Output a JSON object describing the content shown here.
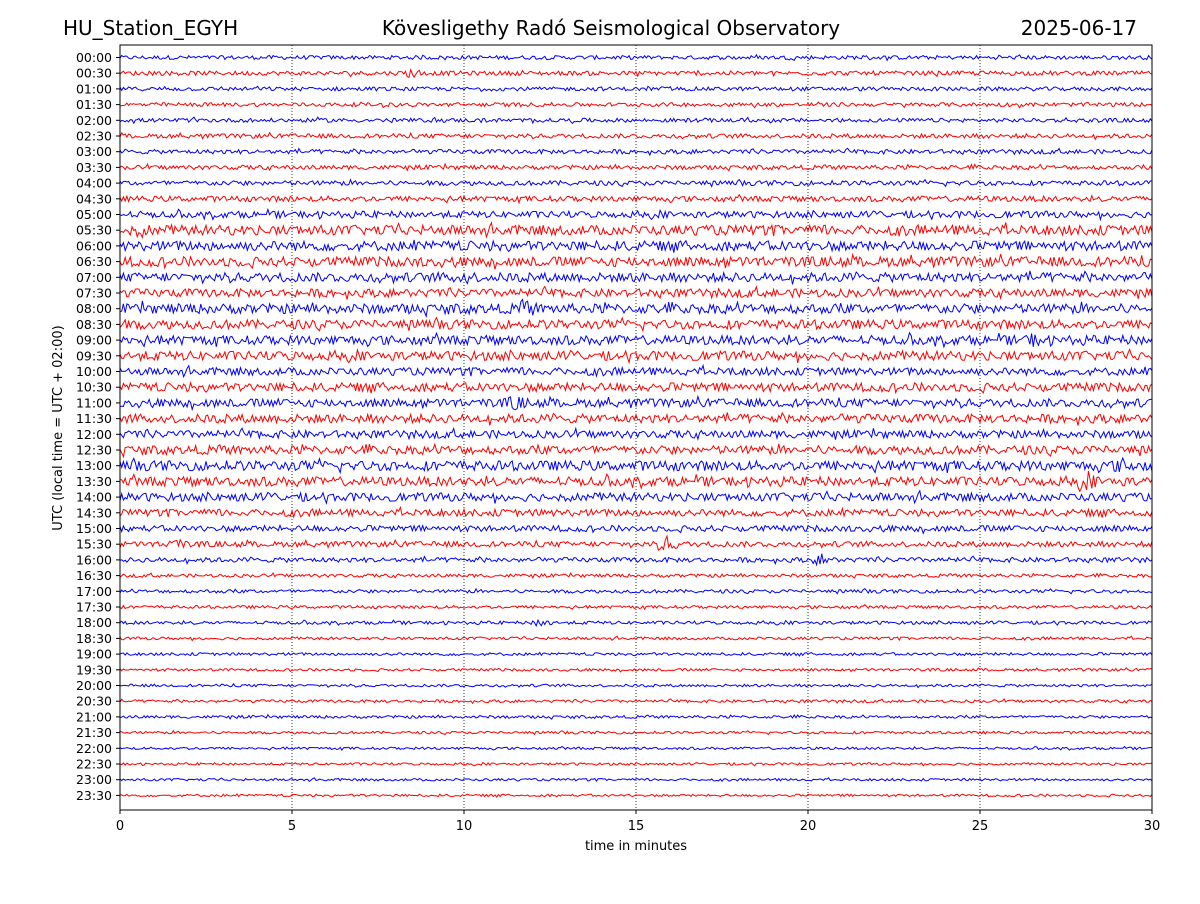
{
  "header": {
    "station": "HU_Station_EGYH",
    "title": "Kövesligethy Radó Seismological Observatory",
    "date": "2025-06-17"
  },
  "colors": {
    "even_rows": "#0000ff",
    "odd_rows": "#ff0000",
    "grid": "#000000"
  },
  "chart_data": {
    "type": "line",
    "title": "Kövesligethy Radó Seismological Observatory",
    "xlabel": "time in minutes",
    "ylabel": "UTC (local time = UTC + 02:00)",
    "xlim": [
      0,
      30
    ],
    "xticks": [
      0,
      5,
      10,
      15,
      20,
      25,
      30
    ],
    "grid": "vertical dotted lines at x ticks",
    "series": [
      {
        "name": "00:00",
        "color": "#0000ff",
        "amplitude": 0.18
      },
      {
        "name": "00:30",
        "color": "#ff0000",
        "amplitude": 0.2
      },
      {
        "name": "01:00",
        "color": "#0000ff",
        "amplitude": 0.18
      },
      {
        "name": "01:30",
        "color": "#ff0000",
        "amplitude": 0.18
      },
      {
        "name": "02:00",
        "color": "#0000ff",
        "amplitude": 0.18
      },
      {
        "name": "02:30",
        "color": "#ff0000",
        "amplitude": 0.2
      },
      {
        "name": "03:00",
        "color": "#0000ff",
        "amplitude": 0.2
      },
      {
        "name": "03:30",
        "color": "#ff0000",
        "amplitude": 0.2
      },
      {
        "name": "04:00",
        "color": "#0000ff",
        "amplitude": 0.22
      },
      {
        "name": "04:30",
        "color": "#ff0000",
        "amplitude": 0.25
      },
      {
        "name": "05:00",
        "color": "#0000ff",
        "amplitude": 0.3
      },
      {
        "name": "05:30",
        "color": "#ff0000",
        "amplitude": 0.45
      },
      {
        "name": "06:00",
        "color": "#0000ff",
        "amplitude": 0.45
      },
      {
        "name": "06:30",
        "color": "#ff0000",
        "amplitude": 0.45
      },
      {
        "name": "07:00",
        "color": "#0000ff",
        "amplitude": 0.42
      },
      {
        "name": "07:30",
        "color": "#ff0000",
        "amplitude": 0.38
      },
      {
        "name": "08:00",
        "color": "#0000ff",
        "amplitude": 0.45
      },
      {
        "name": "08:30",
        "color": "#ff0000",
        "amplitude": 0.42
      },
      {
        "name": "09:00",
        "color": "#0000ff",
        "amplitude": 0.42
      },
      {
        "name": "09:30",
        "color": "#ff0000",
        "amplitude": 0.42
      },
      {
        "name": "10:00",
        "color": "#0000ff",
        "amplitude": 0.35
      },
      {
        "name": "10:30",
        "color": "#ff0000",
        "amplitude": 0.4
      },
      {
        "name": "11:00",
        "color": "#0000ff",
        "amplitude": 0.38
      },
      {
        "name": "11:30",
        "color": "#ff0000",
        "amplitude": 0.4
      },
      {
        "name": "12:00",
        "color": "#0000ff",
        "amplitude": 0.35
      },
      {
        "name": "12:30",
        "color": "#ff0000",
        "amplitude": 0.4
      },
      {
        "name": "13:00",
        "color": "#0000ff",
        "amplitude": 0.45
      },
      {
        "name": "13:30",
        "color": "#ff0000",
        "amplitude": 0.42
      },
      {
        "name": "14:00",
        "color": "#0000ff",
        "amplitude": 0.38
      },
      {
        "name": "14:30",
        "color": "#ff0000",
        "amplitude": 0.32
      },
      {
        "name": "15:00",
        "color": "#0000ff",
        "amplitude": 0.28
      },
      {
        "name": "15:30",
        "color": "#ff0000",
        "amplitude": 0.25
      },
      {
        "name": "16:00",
        "color": "#0000ff",
        "amplitude": 0.22
      },
      {
        "name": "16:30",
        "color": "#ff0000",
        "amplitude": 0.15
      },
      {
        "name": "17:00",
        "color": "#0000ff",
        "amplitude": 0.16
      },
      {
        "name": "17:30",
        "color": "#ff0000",
        "amplitude": 0.14
      },
      {
        "name": "18:00",
        "color": "#0000ff",
        "amplitude": 0.15
      },
      {
        "name": "18:30",
        "color": "#ff0000",
        "amplitude": 0.13
      },
      {
        "name": "19:00",
        "color": "#0000ff",
        "amplitude": 0.13
      },
      {
        "name": "19:30",
        "color": "#ff0000",
        "amplitude": 0.12
      },
      {
        "name": "20:00",
        "color": "#0000ff",
        "amplitude": 0.12
      },
      {
        "name": "20:30",
        "color": "#ff0000",
        "amplitude": 0.13
      },
      {
        "name": "21:00",
        "color": "#0000ff",
        "amplitude": 0.13
      },
      {
        "name": "21:30",
        "color": "#ff0000",
        "amplitude": 0.12
      },
      {
        "name": "22:00",
        "color": "#0000ff",
        "amplitude": 0.11
      },
      {
        "name": "22:30",
        "color": "#ff0000",
        "amplitude": 0.11
      },
      {
        "name": "23:00",
        "color": "#0000ff",
        "amplitude": 0.11
      },
      {
        "name": "23:30",
        "color": "#ff0000",
        "amplitude": 0.11
      }
    ],
    "events": [
      {
        "series": "00:30",
        "x": 8.5,
        "amplitude": 0.5
      },
      {
        "series": "05:30",
        "x": 0.6,
        "amplitude": 0.7
      },
      {
        "series": "07:00",
        "x": 10.0,
        "amplitude": 0.7
      },
      {
        "series": "08:00",
        "x": 11.8,
        "amplitude": 0.8
      },
      {
        "series": "09:00",
        "x": 26.5,
        "amplitude": 0.7
      },
      {
        "series": "11:00",
        "x": 11.5,
        "amplitude": 0.7
      },
      {
        "series": "13:00",
        "x": 29.2,
        "amplitude": 0.8
      },
      {
        "series": "13:30",
        "x": 28.1,
        "amplitude": 0.8
      },
      {
        "series": "15:30",
        "x": 1.6,
        "amplitude": 0.6
      },
      {
        "series": "15:30",
        "x": 15.9,
        "amplitude": 0.8
      },
      {
        "series": "16:00",
        "x": 20.4,
        "amplitude": 0.6
      },
      {
        "series": "18:00",
        "x": 12.3,
        "amplitude": 0.5
      }
    ]
  }
}
